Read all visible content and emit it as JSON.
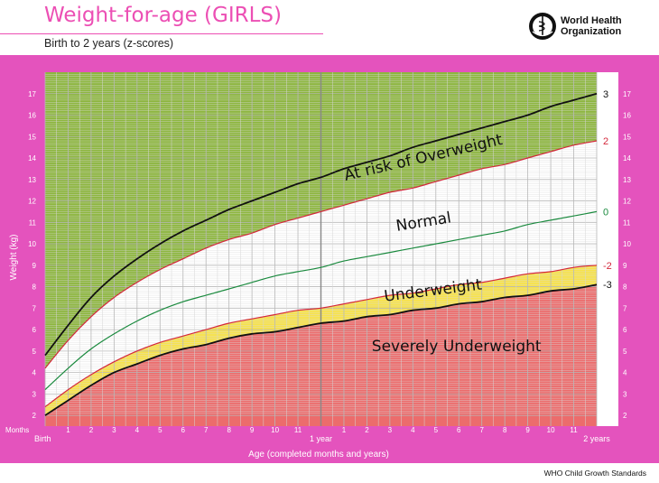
{
  "header": {
    "title": "Weight-for-age (GIRLS)",
    "subtitle": "Birth to 2 years (z-scores)"
  },
  "logo": {
    "line1": "World Health",
    "line2": "Organization",
    "icon": "who-emblem-icon"
  },
  "footer": {
    "text": "WHO Child Growth Standards"
  },
  "colors": {
    "panel": "#e453bd",
    "grid": "#c6c6c6",
    "green": "#8db63f",
    "white": "#ffffff",
    "yellow": "#f7e24b",
    "red": "#ec6c6c",
    "curve_black": "#111111",
    "curve_red": "#d4283c",
    "curve_green": "#1a8a3e",
    "title_pink": "#ec4fb4"
  },
  "chart_data": {
    "type": "line",
    "title": "Weight-for-age (GIRLS)",
    "subtitle": "Birth to 2 years (z-scores)",
    "xlabel": "Age (completed months and years)",
    "ylabel": "Weight (kg)",
    "x_unit_label": "Months",
    "xlim": [
      0,
      24
    ],
    "ylim": [
      1.5,
      18
    ],
    "y_ticks": [
      2,
      3,
      4,
      5,
      6,
      7,
      8,
      9,
      10,
      11,
      12,
      13,
      14,
      15,
      16,
      17
    ],
    "x_tick_labels": [
      "Birth",
      "1",
      "2",
      "3",
      "4",
      "5",
      "6",
      "7",
      "8",
      "9",
      "10",
      "11",
      "1 year",
      "1",
      "2",
      "3",
      "4",
      "5",
      "6",
      "7",
      "8",
      "9",
      "10",
      "11",
      "2 years"
    ],
    "x": [
      0,
      1,
      2,
      3,
      4,
      5,
      6,
      7,
      8,
      9,
      10,
      11,
      12,
      13,
      14,
      15,
      16,
      17,
      18,
      19,
      20,
      21,
      22,
      23,
      24
    ],
    "series": [
      {
        "name": "3",
        "color": "#111111",
        "values": [
          4.8,
          6.2,
          7.5,
          8.5,
          9.3,
          10.0,
          10.6,
          11.1,
          11.6,
          12.0,
          12.4,
          12.8,
          13.1,
          13.5,
          13.8,
          14.1,
          14.5,
          14.8,
          15.1,
          15.4,
          15.7,
          16.0,
          16.4,
          16.7,
          17.0
        ]
      },
      {
        "name": "2",
        "color": "#d4283c",
        "values": [
          4.2,
          5.5,
          6.6,
          7.5,
          8.2,
          8.8,
          9.3,
          9.8,
          10.2,
          10.5,
          10.9,
          11.2,
          11.5,
          11.8,
          12.1,
          12.4,
          12.6,
          12.9,
          13.2,
          13.5,
          13.7,
          14.0,
          14.3,
          14.6,
          14.8
        ]
      },
      {
        "name": "0",
        "color": "#1a8a3e",
        "values": [
          3.2,
          4.2,
          5.1,
          5.8,
          6.4,
          6.9,
          7.3,
          7.6,
          7.9,
          8.2,
          8.5,
          8.7,
          8.9,
          9.2,
          9.4,
          9.6,
          9.8,
          10.0,
          10.2,
          10.4,
          10.6,
          10.9,
          11.1,
          11.3,
          11.5
        ]
      },
      {
        "name": "-2",
        "color": "#d4283c",
        "values": [
          2.4,
          3.2,
          3.9,
          4.5,
          5.0,
          5.4,
          5.7,
          6.0,
          6.3,
          6.5,
          6.7,
          6.9,
          7.0,
          7.2,
          7.4,
          7.6,
          7.7,
          7.9,
          8.1,
          8.2,
          8.4,
          8.6,
          8.7,
          8.9,
          9.0
        ]
      },
      {
        "name": "-3",
        "color": "#111111",
        "values": [
          2.0,
          2.7,
          3.4,
          4.0,
          4.4,
          4.8,
          5.1,
          5.3,
          5.6,
          5.8,
          5.9,
          6.1,
          6.3,
          6.4,
          6.6,
          6.7,
          6.9,
          7.0,
          7.2,
          7.3,
          7.5,
          7.6,
          7.8,
          7.9,
          8.1
        ]
      }
    ],
    "zone_labels": [
      {
        "text": "At risk of Overweight",
        "x": 16.5,
        "y": 13.8,
        "angle": -13
      },
      {
        "text": "Normal",
        "x": 16.5,
        "y": 10.8,
        "angle": -9
      },
      {
        "text": "Underweight",
        "x": 16.9,
        "y": 7.6,
        "angle": -7
      },
      {
        "text": "Severely Underweight",
        "x": 17.9,
        "y": 5.0,
        "angle": 0
      }
    ],
    "grid": true,
    "legend": "right"
  }
}
